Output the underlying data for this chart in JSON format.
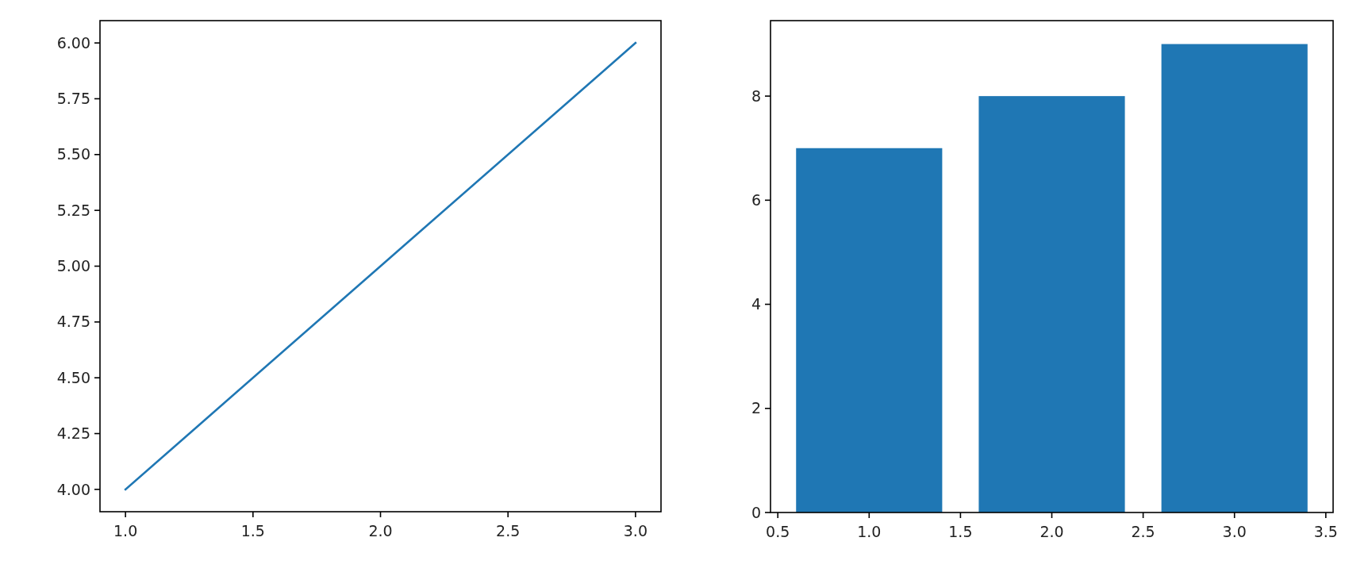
{
  "chart_data": [
    {
      "type": "line",
      "x": [
        1,
        2,
        3
      ],
      "values": [
        4,
        5,
        6
      ],
      "color": "#1f77b4",
      "xlim": [
        0.9,
        3.1
      ],
      "xticks": [
        {
          "value": 1,
          "label": "1.0"
        },
        {
          "value": 1.5,
          "label": "1.5"
        },
        {
          "value": 2,
          "label": "2.0"
        },
        {
          "value": 2.5,
          "label": "2.5"
        },
        {
          "value": 3,
          "label": "3.0"
        }
      ],
      "ylim": [
        3.9,
        6.1
      ],
      "yticks": [
        {
          "value": 4,
          "label": "4.00"
        },
        {
          "value": 4.25,
          "label": "4.25"
        },
        {
          "value": 4.5,
          "label": "4.50"
        },
        {
          "value": 4.75,
          "label": "4.75"
        },
        {
          "value": 5,
          "label": "5.00"
        },
        {
          "value": 5.25,
          "label": "5.25"
        },
        {
          "value": 5.5,
          "label": "5.50"
        },
        {
          "value": 5.75,
          "label": "5.75"
        },
        {
          "value": 6,
          "label": "6.00"
        }
      ]
    },
    {
      "type": "bar",
      "x": [
        1,
        2,
        3
      ],
      "values": [
        7,
        8,
        9
      ],
      "color": "#1f77b4",
      "xlim": [
        0.46,
        3.54
      ],
      "xticks": [
        {
          "value": 0.5,
          "label": "0.5"
        },
        {
          "value": 1,
          "label": "1.0"
        },
        {
          "value": 1.5,
          "label": "1.5"
        },
        {
          "value": 2,
          "label": "2.0"
        },
        {
          "value": 2.5,
          "label": "2.5"
        },
        {
          "value": 3,
          "label": "3.0"
        },
        {
          "value": 3.5,
          "label": "3.5"
        }
      ],
      "ylim": [
        0,
        9.45
      ],
      "yticks": [
        0,
        2,
        4,
        6,
        8
      ]
    }
  ]
}
